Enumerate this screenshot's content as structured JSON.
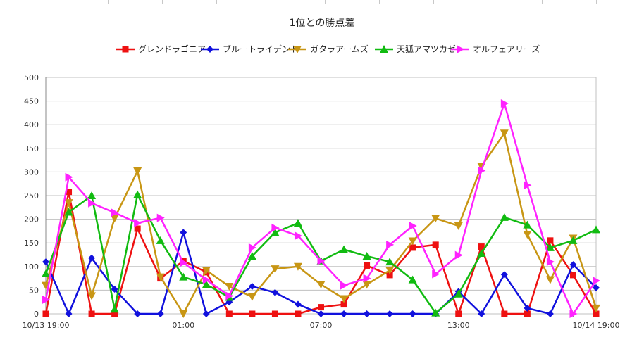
{
  "chart_data": {
    "type": "line",
    "title": "1位との勝点差",
    "xlabel": "",
    "ylabel": "",
    "ylim": [
      0,
      500
    ],
    "yticks": [
      0,
      50,
      100,
      150,
      200,
      250,
      300,
      350,
      400,
      450,
      500
    ],
    "xtick_labels": [
      "10/13 19:00",
      "01:00",
      "07:00",
      "13:00",
      "10/14 19:00"
    ],
    "xtick_indices": [
      0,
      6,
      12,
      18,
      24
    ],
    "grid": true,
    "legend_position": "top",
    "n_points": 25,
    "series": [
      {
        "name": "グレンドラゴニア",
        "color": "#ee1111",
        "marker": "square",
        "values": [
          0,
          258,
          0,
          0,
          180,
          75,
          112,
          88,
          0,
          0,
          0,
          0,
          14,
          20,
          102,
          82,
          140,
          146,
          0,
          142,
          0,
          0,
          155,
          82,
          0
        ]
      },
      {
        "name": "ブルートライデント",
        "color": "#1111dd",
        "marker": "diamond",
        "values": [
          110,
          0,
          118,
          52,
          0,
          0,
          172,
          0,
          25,
          58,
          45,
          20,
          0,
          0,
          0,
          0,
          0,
          0,
          47,
          0,
          83,
          12,
          0,
          104,
          55
        ]
      },
      {
        "name": "ガタラアームズ",
        "color": "#c89614",
        "marker": "triangle-down",
        "values": [
          60,
          235,
          38,
          202,
          302,
          78,
          0,
          92,
          58,
          36,
          95,
          100,
          62,
          32,
          62,
          92,
          154,
          202,
          186,
          312,
          382,
          168,
          72,
          160,
          12
        ]
      },
      {
        "name": "天狐アマツカゼ",
        "color": "#11bb11",
        "marker": "triangle-up",
        "values": [
          85,
          215,
          250,
          10,
          252,
          155,
          78,
          62,
          35,
          122,
          172,
          192,
          112,
          136,
          122,
          110,
          72,
          2,
          42,
          128,
          204,
          188,
          140,
          155,
          178
        ]
      },
      {
        "name": "オルフェアリーズ",
        "color": "#ff22ff",
        "marker": "triangle-right",
        "values": [
          30,
          289,
          234,
          214,
          192,
          203,
          108,
          72,
          38,
          140,
          182,
          165,
          112,
          60,
          75,
          146,
          186,
          84,
          124,
          303,
          445,
          272,
          110,
          0,
          70
        ]
      }
    ]
  }
}
